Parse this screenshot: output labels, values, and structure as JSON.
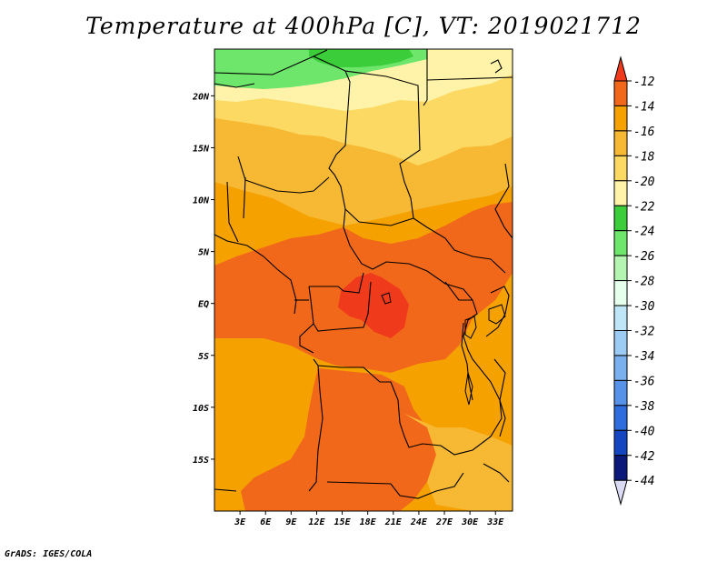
{
  "title": "Temperature at 400hPa [C], VT: 2019021712",
  "credit": "GrADS: IGES/COLA",
  "lat_ticks": [
    {
      "label": "20N",
      "lat": 20
    },
    {
      "label": "15N",
      "lat": 15
    },
    {
      "label": "10N",
      "lat": 10
    },
    {
      "label": "5N",
      "lat": 5
    },
    {
      "label": "EQ",
      "lat": 0
    },
    {
      "label": "5S",
      "lat": -5
    },
    {
      "label": "10S",
      "lat": -10
    },
    {
      "label": "15S",
      "lat": -15
    }
  ],
  "lon_ticks": [
    {
      "label": "3E",
      "lon": 3
    },
    {
      "label": "6E",
      "lon": 6
    },
    {
      "label": "9E",
      "lon": 9
    },
    {
      "label": "12E",
      "lon": 12
    },
    {
      "label": "15E",
      "lon": 15
    },
    {
      "label": "18E",
      "lon": 18
    },
    {
      "label": "21E",
      "lon": 21
    },
    {
      "label": "24E",
      "lon": 24
    },
    {
      "label": "27E",
      "lon": 27
    },
    {
      "label": "30E",
      "lon": 30
    },
    {
      "label": "33E",
      "lon": 33
    }
  ],
  "map_extent": {
    "lon_min": 0,
    "lon_max": 35,
    "lat_min": -20,
    "lat_max": 24.5
  },
  "colorbar": {
    "levels": [
      "-12",
      "-14",
      "-16",
      "-18",
      "-20",
      "-22",
      "-24",
      "-26",
      "-28",
      "-30",
      "-32",
      "-34",
      "-36",
      "-38",
      "-40",
      "-42",
      "-44"
    ],
    "colors": [
      "#f03a1c",
      "#f2681a",
      "#f5a100",
      "#f7b833",
      "#fbd962",
      "#fef3a8",
      "#3ccd3a",
      "#6ee56b",
      "#b3f5b1",
      "#e6ffec",
      "#bfe6f7",
      "#9ccbf3",
      "#7ab0ee",
      "#5592e8",
      "#2e6ddd",
      "#1446c2",
      "#0b1a7a",
      "#dadaf5"
    ]
  },
  "regions": [
    {
      "name": "green-band",
      "color": "#3ccd3a"
    },
    {
      "name": "light-green-band",
      "color": "#6ee56b"
    }
  ]
}
